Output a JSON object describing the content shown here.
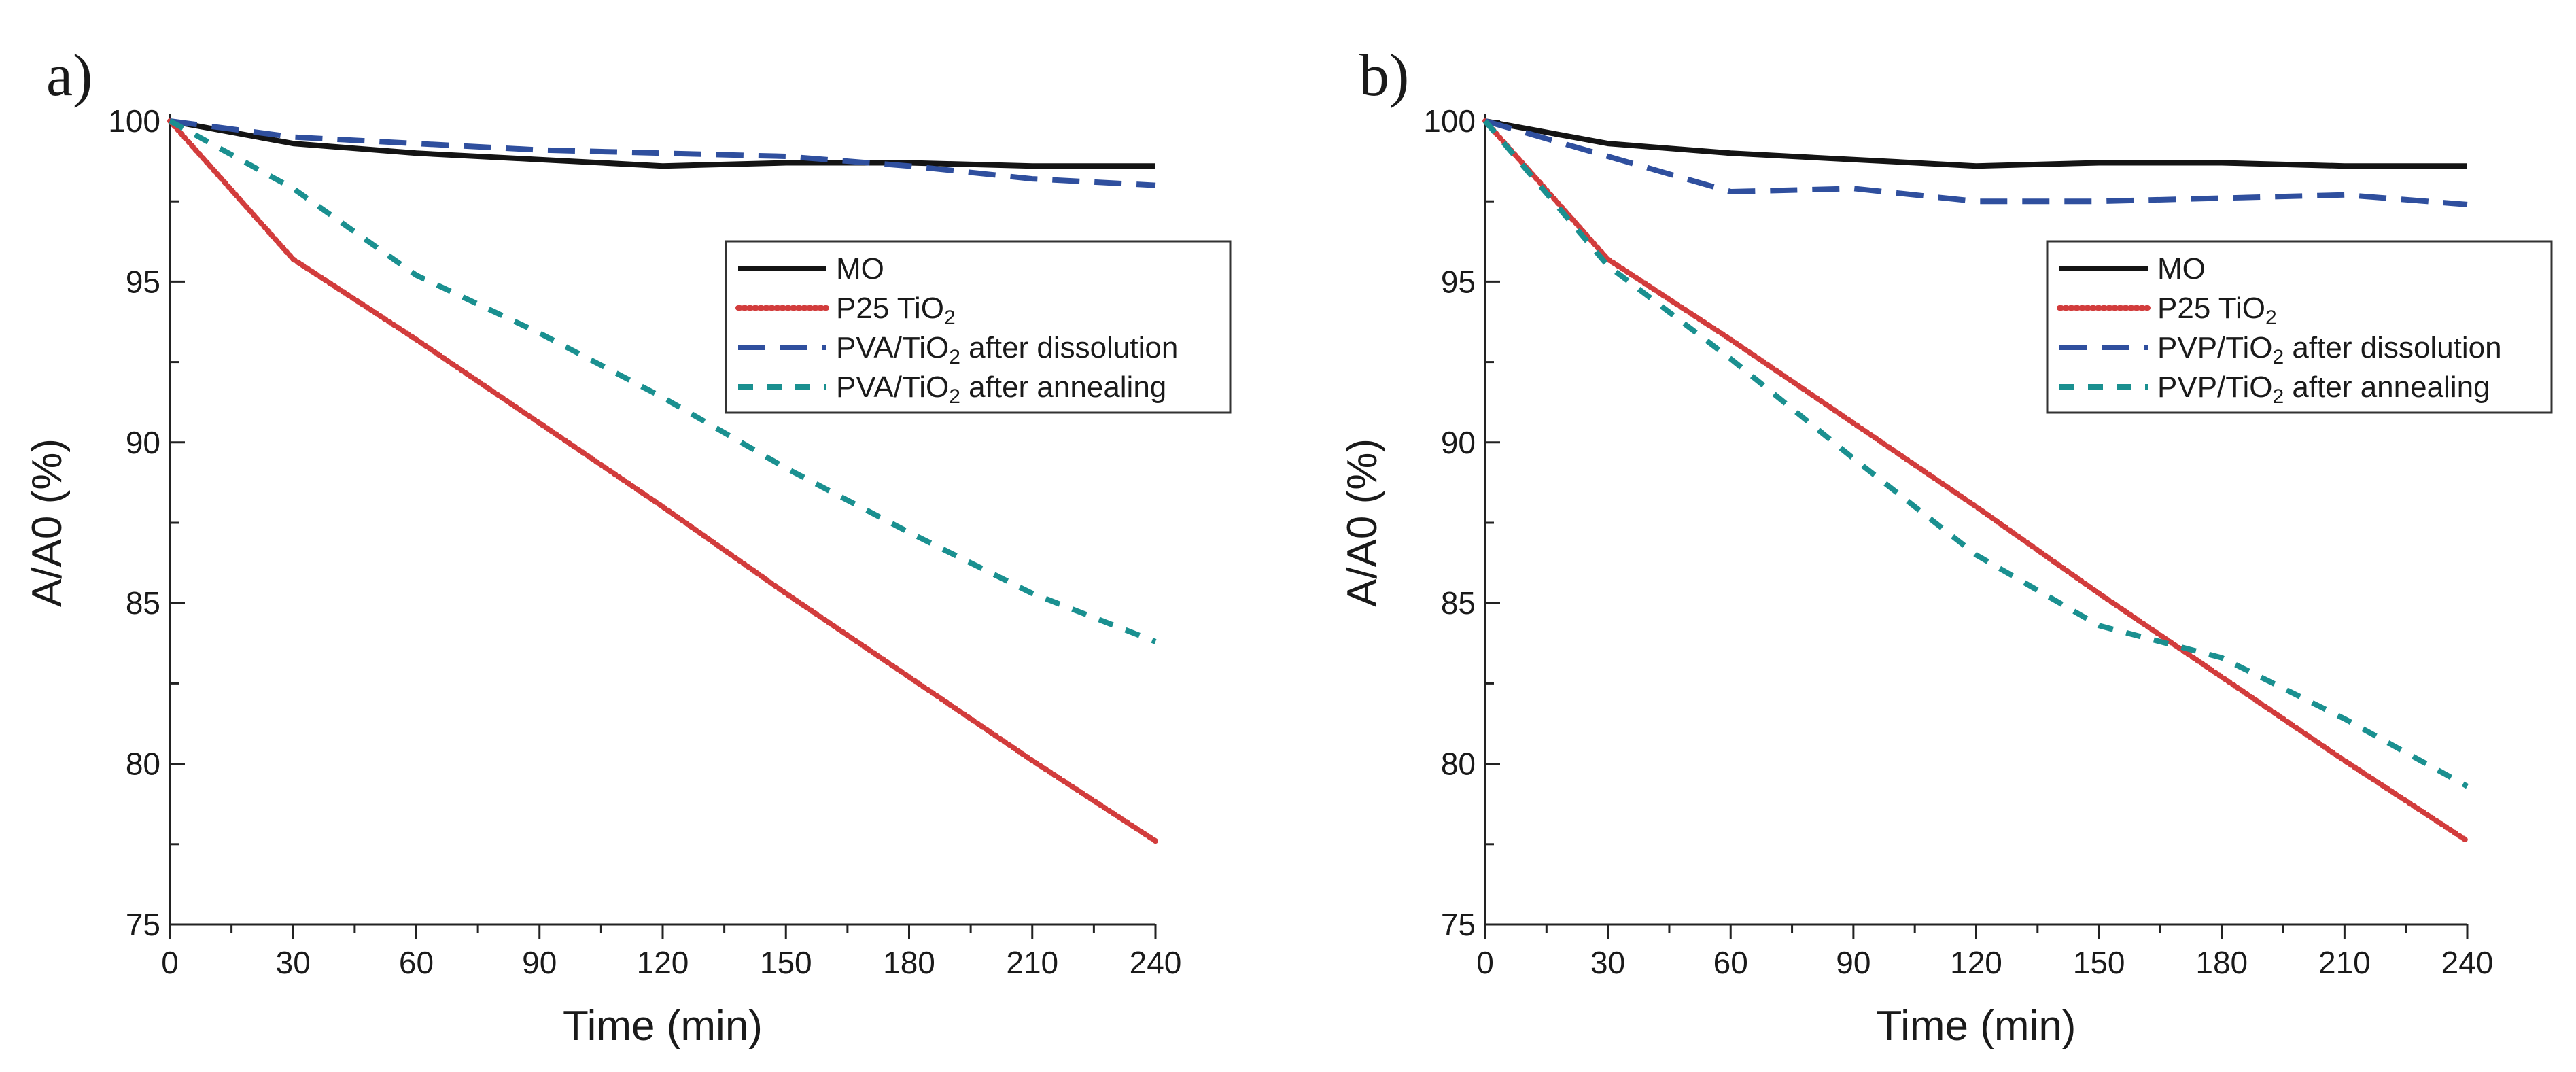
{
  "colors": {
    "MO": "#141414",
    "P25": "#d23c3c",
    "dissolution": "#2f4f9e",
    "annealing": "#1a9090",
    "axis": "#222222"
  },
  "chart_data": [
    {
      "type": "line",
      "panel_label": "a)",
      "xlabel": "Time (min)",
      "ylabel": "A/A0 (%)",
      "xlim": [
        0,
        240
      ],
      "ylim": [
        75,
        100
      ],
      "x": [
        0,
        30,
        60,
        90,
        120,
        150,
        180,
        210,
        240
      ],
      "xticks": [
        "0",
        "30",
        "60",
        "90",
        "120",
        "150",
        "180",
        "210",
        "240"
      ],
      "yticks": [
        "75",
        "80",
        "85",
        "90",
        "95",
        "100"
      ],
      "legend_position": "top-right",
      "series": [
        {
          "name": "MO",
          "legend_main": "MO",
          "legend_sub": "",
          "legend_rest": "",
          "style": "solid",
          "values": [
            100,
            99.3,
            99.0,
            98.8,
            98.6,
            98.7,
            98.7,
            98.6,
            98.6
          ]
        },
        {
          "name": "P25 TiO2",
          "legend_main": "P25 TiO",
          "legend_sub": "2",
          "legend_rest": "",
          "style": "dotted",
          "values": [
            100,
            95.7,
            93.2,
            90.6,
            88.0,
            85.3,
            82.7,
            80.1,
            77.6
          ]
        },
        {
          "name": "PVA/TiO2 after dissolution",
          "legend_main": "PVA/TiO",
          "legend_sub": "2",
          "legend_rest": " after dissolution",
          "style": "long-dash",
          "values": [
            100,
            99.5,
            99.3,
            99.1,
            99.0,
            98.9,
            98.6,
            98.2,
            98.0
          ]
        },
        {
          "name": "PVA/TiO2 after annealing",
          "legend_main": "PVA/TiO",
          "legend_sub": "2",
          "legend_rest": " after annealing",
          "style": "short-dash",
          "values": [
            100,
            97.9,
            95.2,
            93.4,
            91.4,
            89.2,
            87.2,
            85.3,
            83.8
          ]
        }
      ]
    },
    {
      "type": "line",
      "panel_label": "b)",
      "xlabel": "Time (min)",
      "ylabel": "A/A0 (%)",
      "xlim": [
        0,
        240
      ],
      "ylim": [
        75,
        100
      ],
      "x": [
        0,
        30,
        60,
        90,
        120,
        150,
        180,
        210,
        240
      ],
      "xticks": [
        "0",
        "30",
        "60",
        "90",
        "120",
        "150",
        "180",
        "210",
        "240"
      ],
      "yticks": [
        "75",
        "80",
        "85",
        "90",
        "95",
        "100"
      ],
      "legend_position": "top-right",
      "series": [
        {
          "name": "MO",
          "legend_main": "MO",
          "legend_sub": "",
          "legend_rest": "",
          "style": "solid",
          "values": [
            100,
            99.3,
            99.0,
            98.8,
            98.6,
            98.7,
            98.7,
            98.6,
            98.6
          ]
        },
        {
          "name": "P25 TiO2",
          "legend_main": "P25 TiO",
          "legend_sub": "2",
          "legend_rest": "",
          "style": "dotted",
          "values": [
            100,
            95.7,
            93.2,
            90.6,
            88.0,
            85.3,
            82.7,
            80.1,
            77.6
          ]
        },
        {
          "name": "PVP/TiO2 after dissolution",
          "legend_main": "PVP/TiO",
          "legend_sub": "2",
          "legend_rest": " after dissolution",
          "style": "long-dash",
          "values": [
            100,
            98.9,
            97.8,
            97.9,
            97.5,
            97.5,
            97.6,
            97.7,
            97.4
          ]
        },
        {
          "name": "PVP/TiO2 after annealing",
          "legend_main": "PVP/TiO",
          "legend_sub": "2",
          "legend_rest": " after annealing",
          "style": "short-dash",
          "values": [
            100,
            95.5,
            92.6,
            89.5,
            86.5,
            84.3,
            83.3,
            81.4,
            79.3
          ]
        }
      ]
    }
  ]
}
